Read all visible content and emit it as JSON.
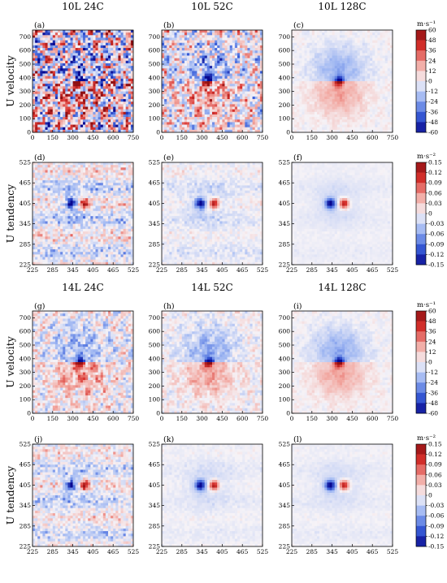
{
  "chart_data": [
    {
      "type": "heatmap",
      "group": "10L",
      "row_label": "U velocity",
      "unit": "m·s⁻¹",
      "colorbar_ticks": [
        "60",
        "48",
        "36",
        "24",
        "12",
        "0",
        "-12",
        "-24",
        "-36",
        "-48",
        "-60"
      ],
      "colorbar_range": [
        -60,
        60
      ],
      "colorscale": [
        "#08088f",
        "#3a5fd9",
        "#9eb6f2",
        "#f6f3f7",
        "#f2a7a0",
        "#d8312d",
        "#8f0f12"
      ],
      "xlim": [
        0,
        750
      ],
      "ylim": [
        0,
        750
      ],
      "xticks": [
        "0",
        "150",
        "300",
        "450",
        "600",
        "750"
      ],
      "yticks": [
        "0",
        "100",
        "200",
        "300",
        "400",
        "500",
        "600",
        "700"
      ],
      "panels": [
        {
          "tag": "(a)",
          "title": "10L 24C"
        },
        {
          "tag": "(b)",
          "title": "10L 52C"
        },
        {
          "tag": "(c)",
          "title": "10L 128C"
        }
      ]
    },
    {
      "type": "heatmap",
      "group": "10L",
      "row_label": "U tendency",
      "unit": "m·s⁻²",
      "colorbar_ticks": [
        "0.15",
        "0.12",
        "0.09",
        "0.06",
        "0.03",
        "0",
        "-0.03",
        "-0.06",
        "-0.09",
        "-0.12",
        "-0.15"
      ],
      "colorbar_range": [
        -0.15,
        0.15
      ],
      "xlim": [
        225,
        525
      ],
      "ylim": [
        225,
        525
      ],
      "xticks": [
        "225",
        "285",
        "345",
        "405",
        "465",
        "525"
      ],
      "yticks": [
        "225",
        "285",
        "345",
        "405",
        "465",
        "525"
      ],
      "panels": [
        {
          "tag": "(d)",
          "title": ""
        },
        {
          "tag": "(e)",
          "title": ""
        },
        {
          "tag": "(f)",
          "title": ""
        }
      ]
    },
    {
      "type": "heatmap",
      "group": "14L",
      "row_label": "U velocity",
      "unit": "m·s⁻¹",
      "colorbar_ticks": [
        "60",
        "48",
        "36",
        "24",
        "12",
        "0",
        "-12",
        "-24",
        "-36",
        "-48",
        "-60"
      ],
      "colorbar_range": [
        -60,
        60
      ],
      "xlim": [
        0,
        750
      ],
      "ylim": [
        0,
        750
      ],
      "xticks": [
        "0",
        "150",
        "300",
        "450",
        "600",
        "750"
      ],
      "yticks": [
        "0",
        "100",
        "200",
        "300",
        "400",
        "500",
        "600",
        "700"
      ],
      "panels": [
        {
          "tag": "(g)",
          "title": "14L 24C"
        },
        {
          "tag": "(h)",
          "title": "14L 52C"
        },
        {
          "tag": "(i)",
          "title": "14L 128C"
        }
      ]
    },
    {
      "type": "heatmap",
      "group": "14L",
      "row_label": "U tendency",
      "unit": "m·s⁻²",
      "colorbar_ticks": [
        "0.15",
        "0.12",
        "0.09",
        "0.06",
        "0.03",
        "0",
        "-0.03",
        "-0.06",
        "-0.09",
        "-0.12",
        "-0.15"
      ],
      "colorbar_range": [
        -0.15,
        0.15
      ],
      "xlim": [
        225,
        525
      ],
      "ylim": [
        225,
        525
      ],
      "xticks": [
        "225",
        "285",
        "345",
        "405",
        "465",
        "525"
      ],
      "yticks": [
        "225",
        "285",
        "345",
        "405",
        "465",
        "525"
      ],
      "panels": [
        {
          "tag": "(j)",
          "title": ""
        },
        {
          "tag": "(k)",
          "title": ""
        },
        {
          "tag": "(l)",
          "title": ""
        }
      ]
    }
  ]
}
